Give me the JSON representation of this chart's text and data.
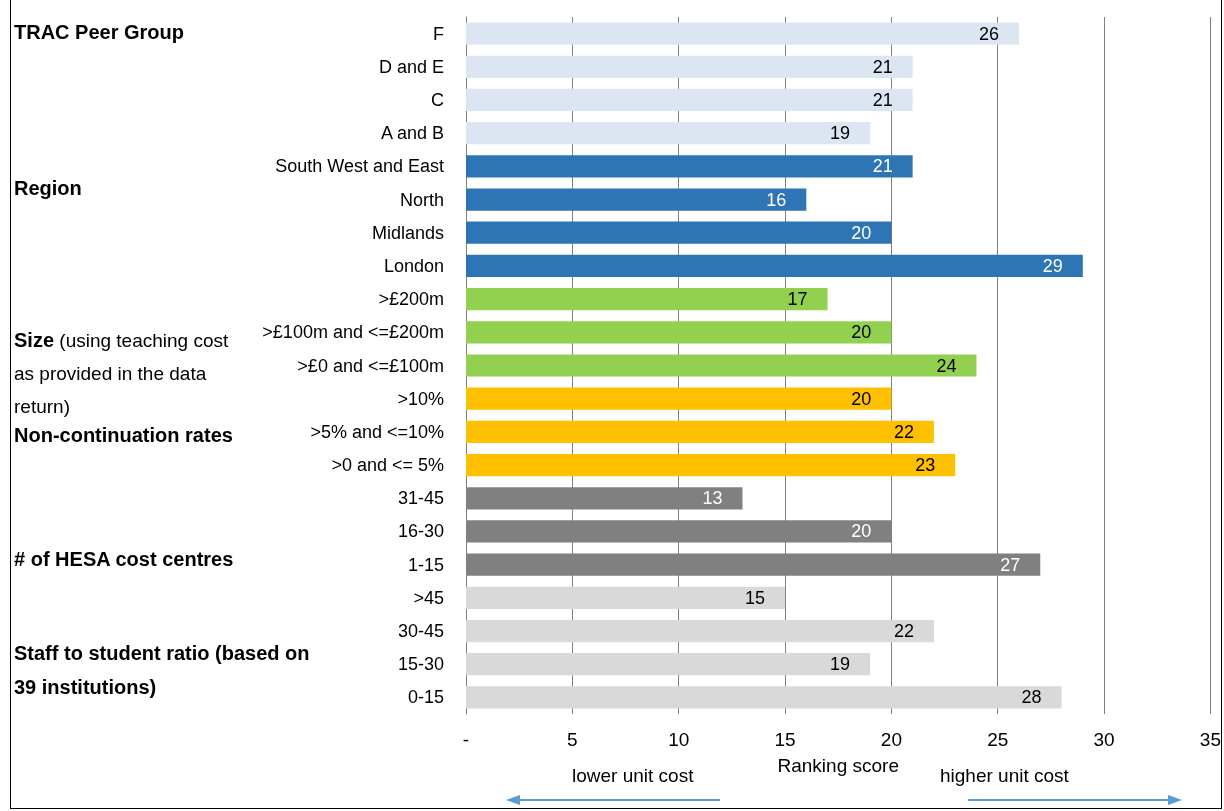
{
  "chart_data": {
    "type": "bar",
    "orientation": "horizontal",
    "xlabel": "Ranking score",
    "categories": [
      "F",
      "D and E",
      "C",
      "A and B",
      "South West and East",
      "North",
      "Midlands",
      "London",
      ">£200m",
      ">£100m and <=£200m",
      ">£0 and <=£100m",
      ">10%",
      ">5% and <=10%",
      ">0 and <= 5%",
      "31-45",
      "16-30",
      "1-15",
      ">45",
      "30-45",
      "15-30",
      "0-15"
    ],
    "values": [
      26,
      21,
      21,
      19,
      21,
      16,
      20,
      29,
      17,
      20,
      24,
      20,
      22,
      23,
      13,
      20,
      27,
      15,
      22,
      19,
      28
    ],
    "colors": [
      "#dce6f2",
      "#dce6f2",
      "#dce6f2",
      "#dce6f2",
      "#2e75b6",
      "#2e75b6",
      "#2e75b6",
      "#2e75b6",
      "#92d050",
      "#92d050",
      "#92d050",
      "#ffc000",
      "#ffc000",
      "#ffc000",
      "#808080",
      "#808080",
      "#808080",
      "#d9d9d9",
      "#d9d9d9",
      "#d9d9d9",
      "#d9d9d9"
    ],
    "xlim": [
      0,
      35
    ],
    "xticks": [
      {
        "value": 0,
        "label": "-"
      },
      5,
      10,
      15,
      20,
      25,
      30,
      35
    ],
    "grid": "x",
    "data_labels": true,
    "annotations": [
      "TRAC Peer Group",
      "Region",
      "Size",
      "(using teaching cost as provided in the data return)",
      "Non-continuation rates",
      "# of HESA cost centres",
      "Staff to student ratio (based on 39 institutions)",
      "lower unit cost",
      "higher unit cost"
    ]
  }
}
